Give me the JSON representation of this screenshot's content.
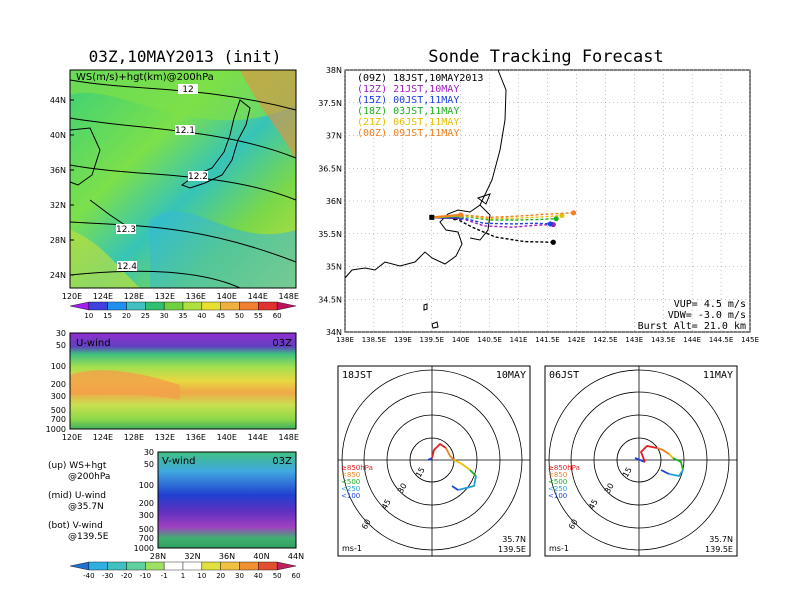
{
  "left_title": "03Z,10MAY2013 (init)",
  "right_title": "Sonde Tracking Forecast",
  "map_panel": {
    "label": "WS(m/s)+hgt(km)@200hPa",
    "lat_ticks": [
      "44N",
      "40N",
      "36N",
      "32N",
      "28N",
      "24N"
    ],
    "lon_ticks": [
      "120E",
      "124E",
      "128E",
      "132E",
      "136E",
      "140E",
      "144E",
      "148E"
    ],
    "contour_labels": [
      "12",
      "12.1",
      "12.2",
      "12.3",
      "12.4"
    ],
    "colorbar": [
      "10",
      "15",
      "20",
      "25",
      "30",
      "35",
      "40",
      "45",
      "50",
      "55",
      "60"
    ]
  },
  "u_panel": {
    "label": "U-wind",
    "time": "03Z",
    "p_ticks": [
      "30",
      "50",
      "100",
      "200",
      "300",
      "500",
      "700",
      "1000"
    ],
    "lon_ticks": [
      "120E",
      "124E",
      "128E",
      "132E",
      "136E",
      "140E",
      "144E",
      "148E"
    ]
  },
  "v_panel": {
    "label": "V-wind",
    "time": "03Z",
    "p_ticks": [
      "30",
      "50",
      "100",
      "200",
      "300",
      "500",
      "700",
      "1000"
    ],
    "lat_ticks": [
      "28N",
      "32N",
      "36N",
      "40N",
      "44N"
    ],
    "colorbar": [
      "-40",
      "-30",
      "-20",
      "-10",
      "-1",
      "1",
      "10",
      "20",
      "30",
      "40",
      "50",
      "60"
    ]
  },
  "notes": [
    {
      "a": "(up) WS+hgt",
      "b": "@200hPa"
    },
    {
      "a": "(mid) U-wind",
      "b": "@35.7N"
    },
    {
      "a": "(bot) V-wind",
      "b": "@139.5E"
    }
  ],
  "track_panel": {
    "lat_ticks": [
      "38N",
      "37.5N",
      "37N",
      "36.5N",
      "36N",
      "35.5N",
      "35N",
      "34.5N",
      "34N"
    ],
    "lon_ticks": [
      "138E",
      "138.5E",
      "139E",
      "139.5E",
      "140E",
      "140.5E",
      "141E",
      "141.5E",
      "142E",
      "142.5E",
      "143E",
      "143.5E",
      "144E",
      "144.5E",
      "145E"
    ],
    "legend": [
      {
        "text": "(09Z)  18JST,10MAY2013",
        "color": "#000000"
      },
      {
        "text": "(12Z)  21JST,10MAY",
        "color": "#a020c0"
      },
      {
        "text": "(15Z)  00JST,11MAY",
        "color": "#2040e0"
      },
      {
        "text": "(18Z)  03JST,11MAY",
        "color": "#20b020"
      },
      {
        "text": "(21Z)  06JST,11MAY",
        "color": "#e8c000"
      },
      {
        "text": "(00Z)  09JST,11MAY",
        "color": "#f08020"
      }
    ],
    "vup": "VUP=  4.5 m/s",
    "vdw": "VDW= -3.0 m/s",
    "burst": "Burst Alt= 21.0 km"
  },
  "hodo_left": {
    "time": "18JST",
    "date": "10MAY",
    "rings": [
      "15",
      "30",
      "45",
      "60"
    ],
    "levels": [
      "≥850hPa",
      "<850",
      "<500",
      "<250",
      "<100"
    ],
    "unit": "ms-1",
    "lat": "35.7N",
    "lon": "139.5E"
  },
  "hodo_right": {
    "time": "06JST",
    "date": "11MAY",
    "rings": [
      "15",
      "30",
      "45",
      "60"
    ],
    "levels": [
      "≥850hPa",
      "<850",
      "<500",
      "<250",
      "<100"
    ],
    "unit": "ms-1",
    "lat": "35.7N",
    "lon": "139.5E"
  },
  "chart_data": {
    "type": "line",
    "title": "Sonde Tracking Forecast",
    "x_range": [
      138,
      145
    ],
    "y_range": [
      34,
      38
    ],
    "series": [
      {
        "name": "(09Z)  18JST,10MAY2013",
        "color": "#000000",
        "points": [
          [
            139.5,
            35.75
          ],
          [
            139.9,
            35.74
          ],
          [
            140.2,
            35.6
          ],
          [
            140.6,
            35.45
          ],
          [
            141.1,
            35.38
          ],
          [
            141.6,
            35.37
          ]
        ]
      },
      {
        "name": "(12Z)  21JST,10MAY",
        "color": "#a020c0",
        "points": [
          [
            139.5,
            35.75
          ],
          [
            140.0,
            35.74
          ],
          [
            140.4,
            35.62
          ],
          [
            140.9,
            35.6
          ],
          [
            141.3,
            35.63
          ],
          [
            141.6,
            35.64
          ]
        ]
      },
      {
        "name": "(15Z)  00JST,11MAY",
        "color": "#2040e0",
        "points": [
          [
            139.5,
            35.75
          ],
          [
            140.0,
            35.75
          ],
          [
            140.4,
            35.66
          ],
          [
            140.9,
            35.65
          ],
          [
            141.3,
            35.66
          ],
          [
            141.55,
            35.65
          ]
        ]
      },
      {
        "name": "(18Z)  03JST,11MAY",
        "color": "#20b020",
        "points": [
          [
            139.5,
            35.75
          ],
          [
            140.0,
            35.77
          ],
          [
            140.5,
            35.71
          ],
          [
            141.0,
            35.71
          ],
          [
            141.4,
            35.72
          ],
          [
            141.65,
            35.73
          ]
        ]
      },
      {
        "name": "(21Z)  06JST,11MAY",
        "color": "#e8c000",
        "points": [
          [
            139.5,
            35.75
          ],
          [
            140.0,
            35.78
          ],
          [
            140.5,
            35.73
          ],
          [
            141.0,
            35.74
          ],
          [
            141.45,
            35.76
          ],
          [
            141.75,
            35.78
          ]
        ]
      },
      {
        "name": "(00Z)  09JST,11MAY",
        "color": "#f08020",
        "points": [
          [
            139.5,
            35.75
          ],
          [
            140.0,
            35.79
          ],
          [
            140.5,
            35.75
          ],
          [
            141.0,
            35.77
          ],
          [
            141.5,
            35.8
          ],
          [
            141.95,
            35.82
          ]
        ]
      }
    ]
  }
}
